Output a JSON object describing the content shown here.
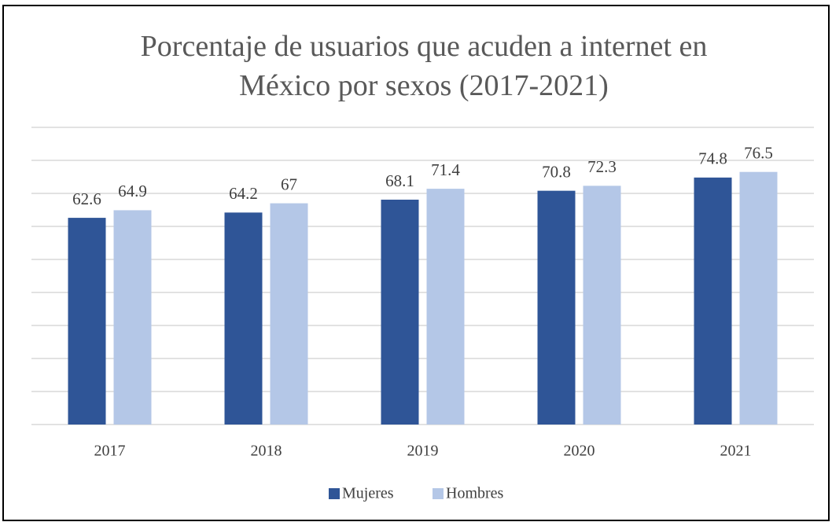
{
  "chart_data": {
    "type": "bar",
    "title": "Porcentaje de usuarios que acuden a internet en México por sexos (2017-2021)",
    "categories": [
      "2017",
      "2018",
      "2019",
      "2020",
      "2021"
    ],
    "series": [
      {
        "name": "Mujeres",
        "color": "#2f5597",
        "values": [
          62.6,
          64.2,
          68.1,
          70.8,
          74.8
        ]
      },
      {
        "name": "Hombres",
        "color": "#b4c7e7",
        "values": [
          64.9,
          67,
          71.4,
          72.3,
          76.5
        ]
      }
    ],
    "ylim": [
      0,
      90
    ],
    "yticks": [
      0,
      10,
      20,
      30,
      40,
      50,
      60,
      70,
      80,
      90
    ],
    "grid": true,
    "legend": "bottom"
  }
}
